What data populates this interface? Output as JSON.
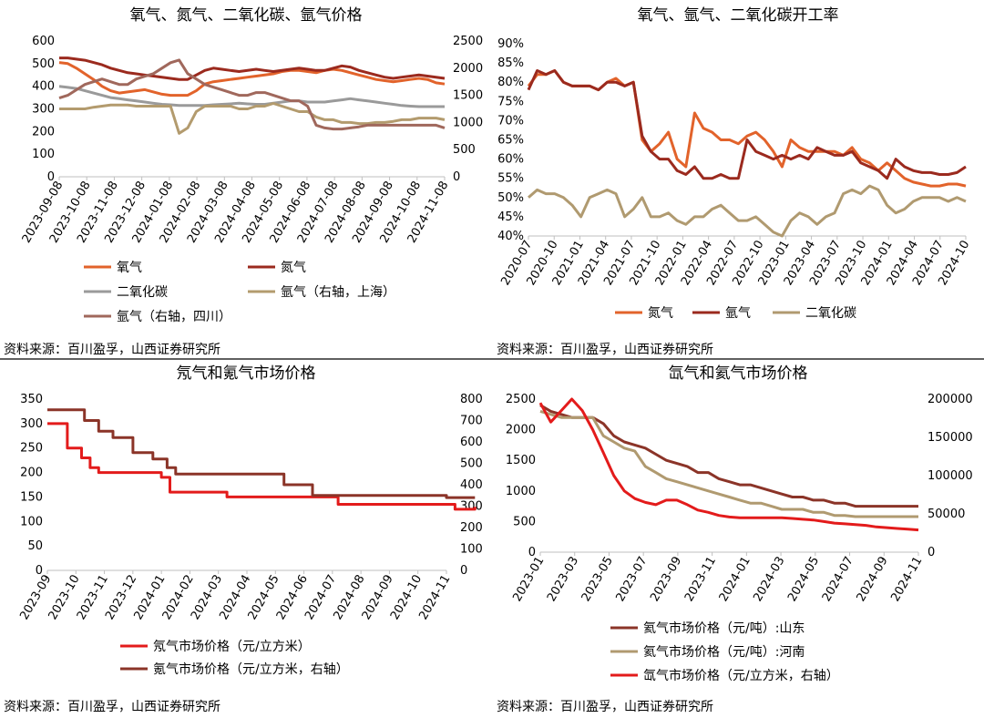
{
  "colors": {
    "orange": "#e2632b",
    "darkred": "#9b2a1e",
    "gray": "#9a9a9a",
    "khaki": "#b39b6e",
    "mauve": "#a0685c",
    "red": "#e31b1b",
    "brown": "#8b3428",
    "tan": "#b09a70"
  },
  "source_note": "资料来源：百川盈孚，山西证券研究所",
  "chart_data": [
    {
      "type": "line",
      "title": "氧气、氮气、二氧化碳、氩气价格",
      "x_ticks": [
        "2023-09-08",
        "2023-10-08",
        "2023-11-08",
        "2023-12-08",
        "2024-01-08",
        "2024-02-08",
        "2024-03-08",
        "2024-04-08",
        "2024-05-08",
        "2024-06-08",
        "2024-07-08",
        "2024-08-08",
        "2024-09-08",
        "2024-10-08",
        "2024-11-08"
      ],
      "ylim": [
        0,
        600
      ],
      "yticks": [
        0,
        100,
        200,
        300,
        400,
        500,
        600
      ],
      "y2lim": [
        0,
        2500
      ],
      "y2ticks": [
        0,
        500,
        1000,
        1500,
        2000,
        2500
      ],
      "series": [
        {
          "name": "氧气",
          "axis": "left",
          "color": "#e2632b",
          "values": [
            505,
            500,
            480,
            455,
            430,
            400,
            380,
            370,
            375,
            380,
            385,
            375,
            365,
            360,
            360,
            360,
            380,
            410,
            420,
            425,
            430,
            435,
            440,
            445,
            450,
            455,
            465,
            470,
            470,
            465,
            460,
            470,
            475,
            470,
            460,
            450,
            440,
            430,
            425,
            420,
            425,
            430,
            435,
            430,
            415,
            410
          ]
        },
        {
          "name": "氮气",
          "axis": "left",
          "color": "#9b2a1e",
          "values": [
            525,
            525,
            520,
            515,
            505,
            495,
            480,
            470,
            460,
            455,
            450,
            445,
            440,
            435,
            430,
            430,
            450,
            470,
            480,
            475,
            470,
            465,
            470,
            475,
            470,
            465,
            470,
            475,
            480,
            475,
            470,
            470,
            480,
            490,
            485,
            470,
            460,
            450,
            440,
            435,
            440,
            445,
            450,
            445,
            440,
            435
          ]
        },
        {
          "name": "二氧化碳",
          "axis": "left",
          "color": "#9a9a9a",
          "values": [
            400,
            395,
            390,
            380,
            370,
            360,
            350,
            345,
            340,
            335,
            330,
            325,
            320,
            318,
            315,
            315,
            315,
            315,
            318,
            320,
            322,
            325,
            322,
            320,
            320,
            325,
            330,
            335,
            335,
            330,
            330,
            330,
            335,
            340,
            345,
            340,
            335,
            330,
            325,
            320,
            315,
            312,
            310,
            310,
            310,
            310
          ]
        },
        {
          "name": "氩气（右轴，上海）",
          "axis": "right",
          "color": "#b39b6e",
          "values": [
            1250,
            1250,
            1250,
            1250,
            1280,
            1300,
            1320,
            1320,
            1320,
            1300,
            1300,
            1300,
            1300,
            1300,
            800,
            900,
            1200,
            1300,
            1300,
            1300,
            1300,
            1250,
            1250,
            1300,
            1300,
            1350,
            1300,
            1250,
            1200,
            1200,
            1100,
            1050,
            1050,
            1000,
            1000,
            980,
            980,
            1000,
            1000,
            1020,
            1050,
            1050,
            1080,
            1080,
            1080,
            1050
          ]
        },
        {
          "name": "氩气（右轴，四川）",
          "axis": "right",
          "color": "#a0685c",
          "values": [
            1450,
            1500,
            1600,
            1700,
            1750,
            1800,
            1750,
            1700,
            1700,
            1800,
            1850,
            1900,
            2000,
            2100,
            2150,
            1900,
            1800,
            1700,
            1650,
            1600,
            1550,
            1500,
            1500,
            1550,
            1550,
            1500,
            1450,
            1400,
            1400,
            1300,
            950,
            900,
            880,
            880,
            900,
            920,
            950,
            950,
            950,
            950,
            950,
            950,
            950,
            950,
            950,
            900
          ]
        }
      ]
    },
    {
      "type": "line",
      "title": "氧气、氩气、二氧化碳开工率",
      "x_ticks": [
        "2020-07",
        "2020-10",
        "2021-01",
        "2021-04",
        "2021-07",
        "2021-10",
        "2022-01",
        "2022-04",
        "2022-07",
        "2022-10",
        "2023-01",
        "2023-04",
        "2023-07",
        "2023-10",
        "2024-01",
        "2024-04",
        "2024-07",
        "2024-10"
      ],
      "ylim": [
        0.4,
        0.9
      ],
      "yticks": [
        "40%",
        "45%",
        "50%",
        "55%",
        "60%",
        "65%",
        "70%",
        "75%",
        "80%",
        "85%",
        "90%"
      ],
      "series": [
        {
          "name": "氮气",
          "color": "#e2632b",
          "values": [
            0.79,
            0.82,
            0.82,
            0.83,
            0.8,
            0.79,
            0.79,
            0.79,
            0.78,
            0.8,
            0.81,
            0.79,
            0.8,
            0.65,
            0.62,
            0.64,
            0.67,
            0.6,
            0.58,
            0.72,
            0.68,
            0.67,
            0.65,
            0.65,
            0.64,
            0.66,
            0.67,
            0.65,
            0.62,
            0.58,
            0.65,
            0.63,
            0.62,
            0.62,
            0.62,
            0.62,
            0.61,
            0.63,
            0.6,
            0.59,
            0.57,
            0.59,
            0.57,
            0.55,
            0.54,
            0.535,
            0.53,
            0.53,
            0.535,
            0.535,
            0.53
          ]
        },
        {
          "name": "氩气",
          "color": "#9b2a1e",
          "values": [
            0.78,
            0.83,
            0.82,
            0.83,
            0.8,
            0.79,
            0.79,
            0.79,
            0.78,
            0.8,
            0.8,
            0.79,
            0.8,
            0.66,
            0.62,
            0.6,
            0.6,
            0.57,
            0.56,
            0.58,
            0.55,
            0.55,
            0.56,
            0.55,
            0.55,
            0.65,
            0.62,
            0.61,
            0.6,
            0.61,
            0.6,
            0.61,
            0.6,
            0.63,
            0.62,
            0.61,
            0.61,
            0.62,
            0.59,
            0.58,
            0.57,
            0.55,
            0.6,
            0.58,
            0.57,
            0.565,
            0.565,
            0.56,
            0.56,
            0.565,
            0.58
          ]
        },
        {
          "name": "二氧化碳",
          "color": "#b09a70",
          "values": [
            0.5,
            0.52,
            0.51,
            0.51,
            0.5,
            0.48,
            0.45,
            0.5,
            0.51,
            0.52,
            0.51,
            0.45,
            0.47,
            0.5,
            0.45,
            0.45,
            0.46,
            0.44,
            0.43,
            0.45,
            0.45,
            0.47,
            0.48,
            0.46,
            0.44,
            0.44,
            0.45,
            0.43,
            0.41,
            0.4,
            0.44,
            0.46,
            0.45,
            0.43,
            0.45,
            0.46,
            0.51,
            0.52,
            0.51,
            0.53,
            0.52,
            0.48,
            0.46,
            0.47,
            0.49,
            0.5,
            0.5,
            0.5,
            0.49,
            0.5,
            0.49
          ]
        }
      ]
    },
    {
      "type": "line",
      "title": "氖气和氪气市场价格",
      "x_ticks": [
        "2023-09",
        "2023-10",
        "2023-11",
        "2023-12",
        "2024-01",
        "2024-02",
        "2024-03",
        "2024-04",
        "2024-05",
        "2024-06",
        "2024-07",
        "2024-08",
        "2024-09",
        "2024-10",
        "2024-11"
      ],
      "ylim": [
        0,
        350
      ],
      "yticks": [
        0,
        50,
        100,
        150,
        200,
        250,
        300,
        350
      ],
      "y2lim": [
        0,
        800
      ],
      "y2ticks": [
        0,
        100,
        200,
        300,
        400,
        500,
        600,
        700,
        800
      ],
      "series": [
        {
          "name": "氖气市场价格（元/立方米）",
          "axis": "left",
          "color": "#e31b1b",
          "steps": [
            [
              0,
              300
            ],
            [
              0.7,
              250
            ],
            [
              1.2,
              230
            ],
            [
              1.5,
              210
            ],
            [
              1.8,
              200
            ],
            [
              4.0,
              190
            ],
            [
              4.3,
              160
            ],
            [
              6.0,
              160
            ],
            [
              6.3,
              150
            ],
            [
              9.9,
              150
            ],
            [
              10.2,
              135
            ],
            [
              14.3,
              125
            ],
            [
              15.0,
              130
            ]
          ]
        },
        {
          "name": "氪气市场价格（元/立方米，右轴）",
          "axis": "right",
          "color": "#8b3428",
          "steps": [
            [
              0,
              750
            ],
            [
              1.3,
              700
            ],
            [
              1.8,
              650
            ],
            [
              2.3,
              620
            ],
            [
              3.0,
              550
            ],
            [
              3.7,
              520
            ],
            [
              4.2,
              480
            ],
            [
              4.5,
              450
            ],
            [
              8.3,
              400
            ],
            [
              9.3,
              350
            ],
            [
              14.0,
              340
            ],
            [
              15.0,
              340
            ]
          ]
        }
      ]
    },
    {
      "type": "line",
      "title": "氙气和氦气市场价格",
      "x_ticks": [
        "2023-01",
        "2023-03",
        "2023-05",
        "2023-07",
        "2023-09",
        "2023-11",
        "2024-01",
        "2024-03",
        "2024-05",
        "2024-07",
        "2024-09",
        "2024-11"
      ],
      "ylim": [
        0,
        2500
      ],
      "yticks": [
        0,
        500,
        1000,
        1500,
        2000,
        2500
      ],
      "y2lim": [
        0,
        200000
      ],
      "y2ticks": [
        0,
        50000,
        100000,
        150000,
        200000
      ],
      "series": [
        {
          "name": "氦气市场价格（元/吨）:山东",
          "axis": "left",
          "color": "#8b3428",
          "values": [
            2400,
            2300,
            2250,
            2200,
            2200,
            2200,
            2100,
            1900,
            1800,
            1750,
            1700,
            1600,
            1500,
            1450,
            1400,
            1300,
            1300,
            1200,
            1150,
            1100,
            1100,
            1050,
            1000,
            950,
            900,
            900,
            850,
            850,
            800,
            800,
            750,
            750,
            750,
            750,
            750,
            750,
            750
          ]
        },
        {
          "name": "氦气市场价格（元/吨）:河南",
          "axis": "left",
          "color": "#b09a70",
          "values": [
            2300,
            2250,
            2200,
            2200,
            2200,
            2200,
            1900,
            1800,
            1700,
            1650,
            1400,
            1300,
            1200,
            1150,
            1100,
            1050,
            1000,
            950,
            900,
            850,
            800,
            800,
            750,
            700,
            700,
            700,
            650,
            650,
            600,
            600,
            580,
            580,
            580,
            580,
            580,
            580,
            580
          ]
        },
        {
          "name": "氙气市场价格（元/立方米，右轴）",
          "axis": "right",
          "color": "#e31b1b",
          "values": [
            195000,
            170000,
            185000,
            200000,
            185000,
            160000,
            130000,
            100000,
            80000,
            70000,
            65000,
            62000,
            68000,
            68000,
            62000,
            55000,
            52000,
            48000,
            46000,
            45000,
            45000,
            45000,
            45000,
            45000,
            44000,
            43000,
            42000,
            40000,
            38000,
            37000,
            36000,
            35000,
            33000,
            32000,
            31000,
            30000,
            29000
          ]
        }
      ]
    }
  ]
}
